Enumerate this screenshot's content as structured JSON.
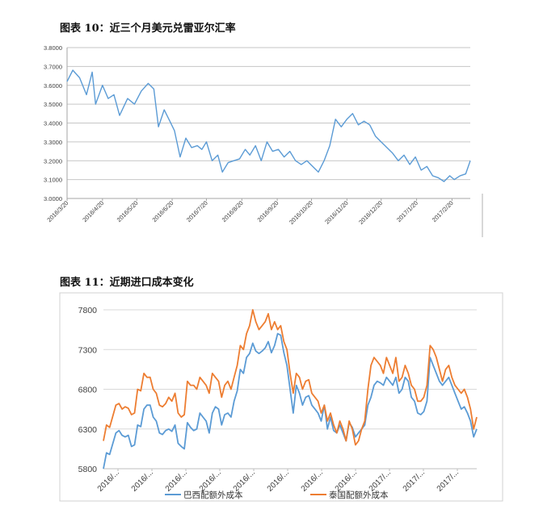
{
  "figures": [
    {
      "title": "图表 10：近三个月美元兑雷亚尔汇率"
    },
    {
      "title": "图表 11：近期进口成本变化"
    }
  ],
  "chart_data": [
    {
      "type": "line",
      "title": "",
      "xlabel": "",
      "ylabel": "",
      "ylim": [
        3.0,
        3.8
      ],
      "yticks": [
        "3.0000",
        "3.1000",
        "3.2000",
        "3.3000",
        "3.4000",
        "3.5000",
        "3.6000",
        "3.7000",
        "3.8000"
      ],
      "xticks": [
        "2016/3/20",
        "2016/4/20",
        "2016/5/20",
        "2016/6/20",
        "2016/7/20",
        "2016/8/20",
        "2016/9/20",
        "2016/10/20",
        "2016/11/20",
        "2016/12/20",
        "2017/1/20",
        "2017/2/20"
      ],
      "grid": true,
      "colors": {
        "series": "#5b9bd5",
        "grid": "#c6c6c6",
        "axis": "#a6a6a6",
        "text": "#404040"
      },
      "series": [
        {
          "name": "",
          "x": [
            "2016-03-20",
            "2016-03-25",
            "2016-03-31",
            "2016-04-06",
            "2016-04-11",
            "2016-04-14",
            "2016-04-20",
            "2016-04-25",
            "2016-04-30",
            "2016-05-05",
            "2016-05-12",
            "2016-05-18",
            "2016-05-24",
            "2016-05-30",
            "2016-06-04",
            "2016-06-08",
            "2016-06-13",
            "2016-06-18",
            "2016-06-22",
            "2016-06-27",
            "2016-07-02",
            "2016-07-07",
            "2016-07-12",
            "2016-07-16",
            "2016-07-20",
            "2016-07-25",
            "2016-07-30",
            "2016-08-03",
            "2016-08-08",
            "2016-08-13",
            "2016-08-18",
            "2016-08-23",
            "2016-08-27",
            "2016-09-01",
            "2016-09-06",
            "2016-09-11",
            "2016-09-16",
            "2016-09-21",
            "2016-09-26",
            "2016-10-01",
            "2016-10-06",
            "2016-10-11",
            "2016-10-16",
            "2016-10-21",
            "2016-10-26",
            "2016-10-31",
            "2016-11-05",
            "2016-11-10",
            "2016-11-15",
            "2016-11-20",
            "2016-11-25",
            "2016-11-30",
            "2016-12-05",
            "2016-12-10",
            "2016-12-15",
            "2016-12-20",
            "2016-12-25",
            "2016-12-30",
            "2017-01-04",
            "2017-01-09",
            "2017-01-14",
            "2017-01-19",
            "2017-01-24",
            "2017-01-29",
            "2017-02-03",
            "2017-02-08",
            "2017-02-13",
            "2017-02-18",
            "2017-02-22",
            "2017-02-27",
            "2017-03-04",
            "2017-03-08"
          ],
          "y": [
            3.62,
            3.68,
            3.64,
            3.55,
            3.67,
            3.5,
            3.6,
            3.53,
            3.55,
            3.44,
            3.53,
            3.5,
            3.57,
            3.61,
            3.58,
            3.38,
            3.47,
            3.41,
            3.36,
            3.22,
            3.32,
            3.27,
            3.28,
            3.26,
            3.3,
            3.2,
            3.23,
            3.14,
            3.19,
            3.2,
            3.21,
            3.26,
            3.23,
            3.28,
            3.2,
            3.3,
            3.25,
            3.26,
            3.22,
            3.25,
            3.2,
            3.18,
            3.2,
            3.17,
            3.14,
            3.2,
            3.28,
            3.42,
            3.38,
            3.42,
            3.45,
            3.39,
            3.41,
            3.39,
            3.33,
            3.3,
            3.27,
            3.24,
            3.2,
            3.23,
            3.18,
            3.22,
            3.15,
            3.17,
            3.12,
            3.11,
            3.09,
            3.12,
            3.1,
            3.12,
            3.13,
            3.2
          ]
        }
      ]
    },
    {
      "type": "line",
      "title": "",
      "xlabel": "",
      "ylabel": "",
      "ylim": [
        5800,
        7800
      ],
      "yticks": [
        "5800",
        "6300",
        "6800",
        "7300",
        "7800"
      ],
      "xticks": [
        "2016/...",
        "2016/...",
        "2016/...",
        "2016/...",
        "2016/...",
        "2016/...",
        "2016/...",
        "2016/...",
        "2017/...",
        "2017/...",
        "2017/..."
      ],
      "grid": true,
      "legend": "bottom",
      "colors": {
        "grid": "#d9d9d9",
        "axis": "#bfbfbf",
        "text": "#404040"
      },
      "series": [
        {
          "name": "巴西配额外成本",
          "color": "#5b9bd5",
          "x": [
            0,
            1,
            2,
            4,
            5,
            6,
            7,
            8,
            9,
            10,
            11,
            12,
            13,
            14,
            15,
            16,
            17,
            18,
            19,
            20,
            21,
            22,
            23,
            24,
            25,
            26,
            27,
            28,
            29,
            30,
            31,
            32,
            33,
            34,
            35,
            36,
            37,
            38,
            39,
            40,
            41,
            42,
            43,
            44,
            45,
            46,
            47,
            48,
            49,
            50,
            51,
            52,
            53,
            54,
            55,
            56,
            57,
            58,
            59,
            60,
            61,
            62,
            63,
            64,
            65,
            66,
            67,
            68,
            69,
            70,
            71,
            72,
            73,
            74,
            75,
            76,
            77,
            78,
            79,
            80,
            81,
            82,
            83,
            84,
            85,
            86,
            87,
            88,
            89,
            90,
            91,
            92,
            93,
            94,
            95,
            96,
            97,
            98,
            99,
            100,
            101,
            102,
            103,
            104,
            105,
            106,
            107,
            108,
            109,
            110,
            111,
            112,
            113,
            114,
            115,
            116,
            117,
            118,
            119,
            120
          ],
          "y": [
            5800,
            6000,
            5980,
            6250,
            6280,
            6220,
            6200,
            6220,
            6080,
            6100,
            6350,
            6330,
            6550,
            6600,
            6600,
            6450,
            6400,
            6250,
            6230,
            6280,
            6300,
            6270,
            6350,
            6120,
            6080,
            6050,
            6380,
            6320,
            6280,
            6300,
            6500,
            6450,
            6400,
            6250,
            6500,
            6580,
            6550,
            6350,
            6480,
            6500,
            6450,
            6650,
            6780,
            7050,
            7000,
            7200,
            7250,
            7380,
            7280,
            7250,
            7280,
            7320,
            7400,
            7260,
            7350,
            7500,
            7480,
            7260,
            7100,
            6800,
            6500,
            6850,
            6750,
            6600,
            6700,
            6720,
            6600,
            6550,
            6500,
            6400,
            6600,
            6300,
            6450,
            6280,
            6250,
            6350,
            6250,
            6150,
            6380,
            6320,
            6200,
            6250,
            6300,
            6350,
            6600,
            6700,
            6850,
            6900,
            6880,
            6850,
            6950,
            6900,
            6850,
            6950,
            6750,
            6800,
            6950,
            6900,
            6700,
            6650,
            6500,
            6480,
            6520,
            6650,
            7200,
            7100,
            7000,
            6900,
            6850,
            6900,
            6950,
            6850,
            6750,
            6650,
            6550,
            6580,
            6500,
            6400,
            6200,
            6300
          ]
        },
        {
          "name": "泰国配额外成本",
          "color": "#ed7d31",
          "x": [
            0,
            1,
            2,
            4,
            5,
            6,
            7,
            8,
            9,
            10,
            11,
            12,
            13,
            14,
            15,
            16,
            17,
            18,
            19,
            20,
            21,
            22,
            23,
            24,
            25,
            26,
            27,
            28,
            29,
            30,
            31,
            32,
            33,
            34,
            35,
            36,
            37,
            38,
            39,
            40,
            41,
            42,
            43,
            44,
            45,
            46,
            47,
            48,
            49,
            50,
            51,
            52,
            53,
            54,
            55,
            56,
            57,
            58,
            59,
            60,
            61,
            62,
            63,
            64,
            65,
            66,
            67,
            68,
            69,
            70,
            71,
            72,
            73,
            74,
            75,
            76,
            77,
            78,
            79,
            80,
            81,
            82,
            83,
            84,
            85,
            86,
            87,
            88,
            89,
            90,
            91,
            92,
            93,
            94,
            95,
            96,
            97,
            98,
            99,
            100,
            101,
            102,
            103,
            104,
            105,
            106,
            107,
            108,
            109,
            110,
            111,
            112,
            113,
            114,
            115,
            116,
            117,
            118,
            119,
            120
          ],
          "y": [
            6150,
            6350,
            6320,
            6600,
            6620,
            6550,
            6580,
            6560,
            6480,
            6500,
            6800,
            6780,
            7000,
            6950,
            6950,
            6800,
            6750,
            6600,
            6580,
            6620,
            6700,
            6650,
            6750,
            6500,
            6450,
            6480,
            6900,
            6850,
            6850,
            6800,
            6950,
            6900,
            6850,
            6750,
            7000,
            6950,
            6900,
            6700,
            6850,
            6900,
            6800,
            6950,
            7100,
            7350,
            7300,
            7500,
            7600,
            7800,
            7650,
            7550,
            7600,
            7650,
            7750,
            7550,
            7650,
            7550,
            7600,
            7400,
            7300,
            7000,
            6750,
            7000,
            6950,
            6800,
            6900,
            6920,
            6750,
            6700,
            6650,
            6500,
            6600,
            6400,
            6500,
            6350,
            6250,
            6400,
            6300,
            6150,
            6400,
            6300,
            6100,
            6150,
            6300,
            6400,
            6800,
            7100,
            7200,
            7150,
            7100,
            7000,
            7200,
            7100,
            7000,
            7200,
            6900,
            6950,
            7100,
            7000,
            6850,
            6800,
            6650,
            6650,
            6700,
            6850,
            7350,
            7300,
            7200,
            7050,
            6900,
            7050,
            7100,
            6950,
            6850,
            6800,
            6750,
            6800,
            6700,
            6550,
            6300,
            6450
          ]
        }
      ]
    }
  ]
}
